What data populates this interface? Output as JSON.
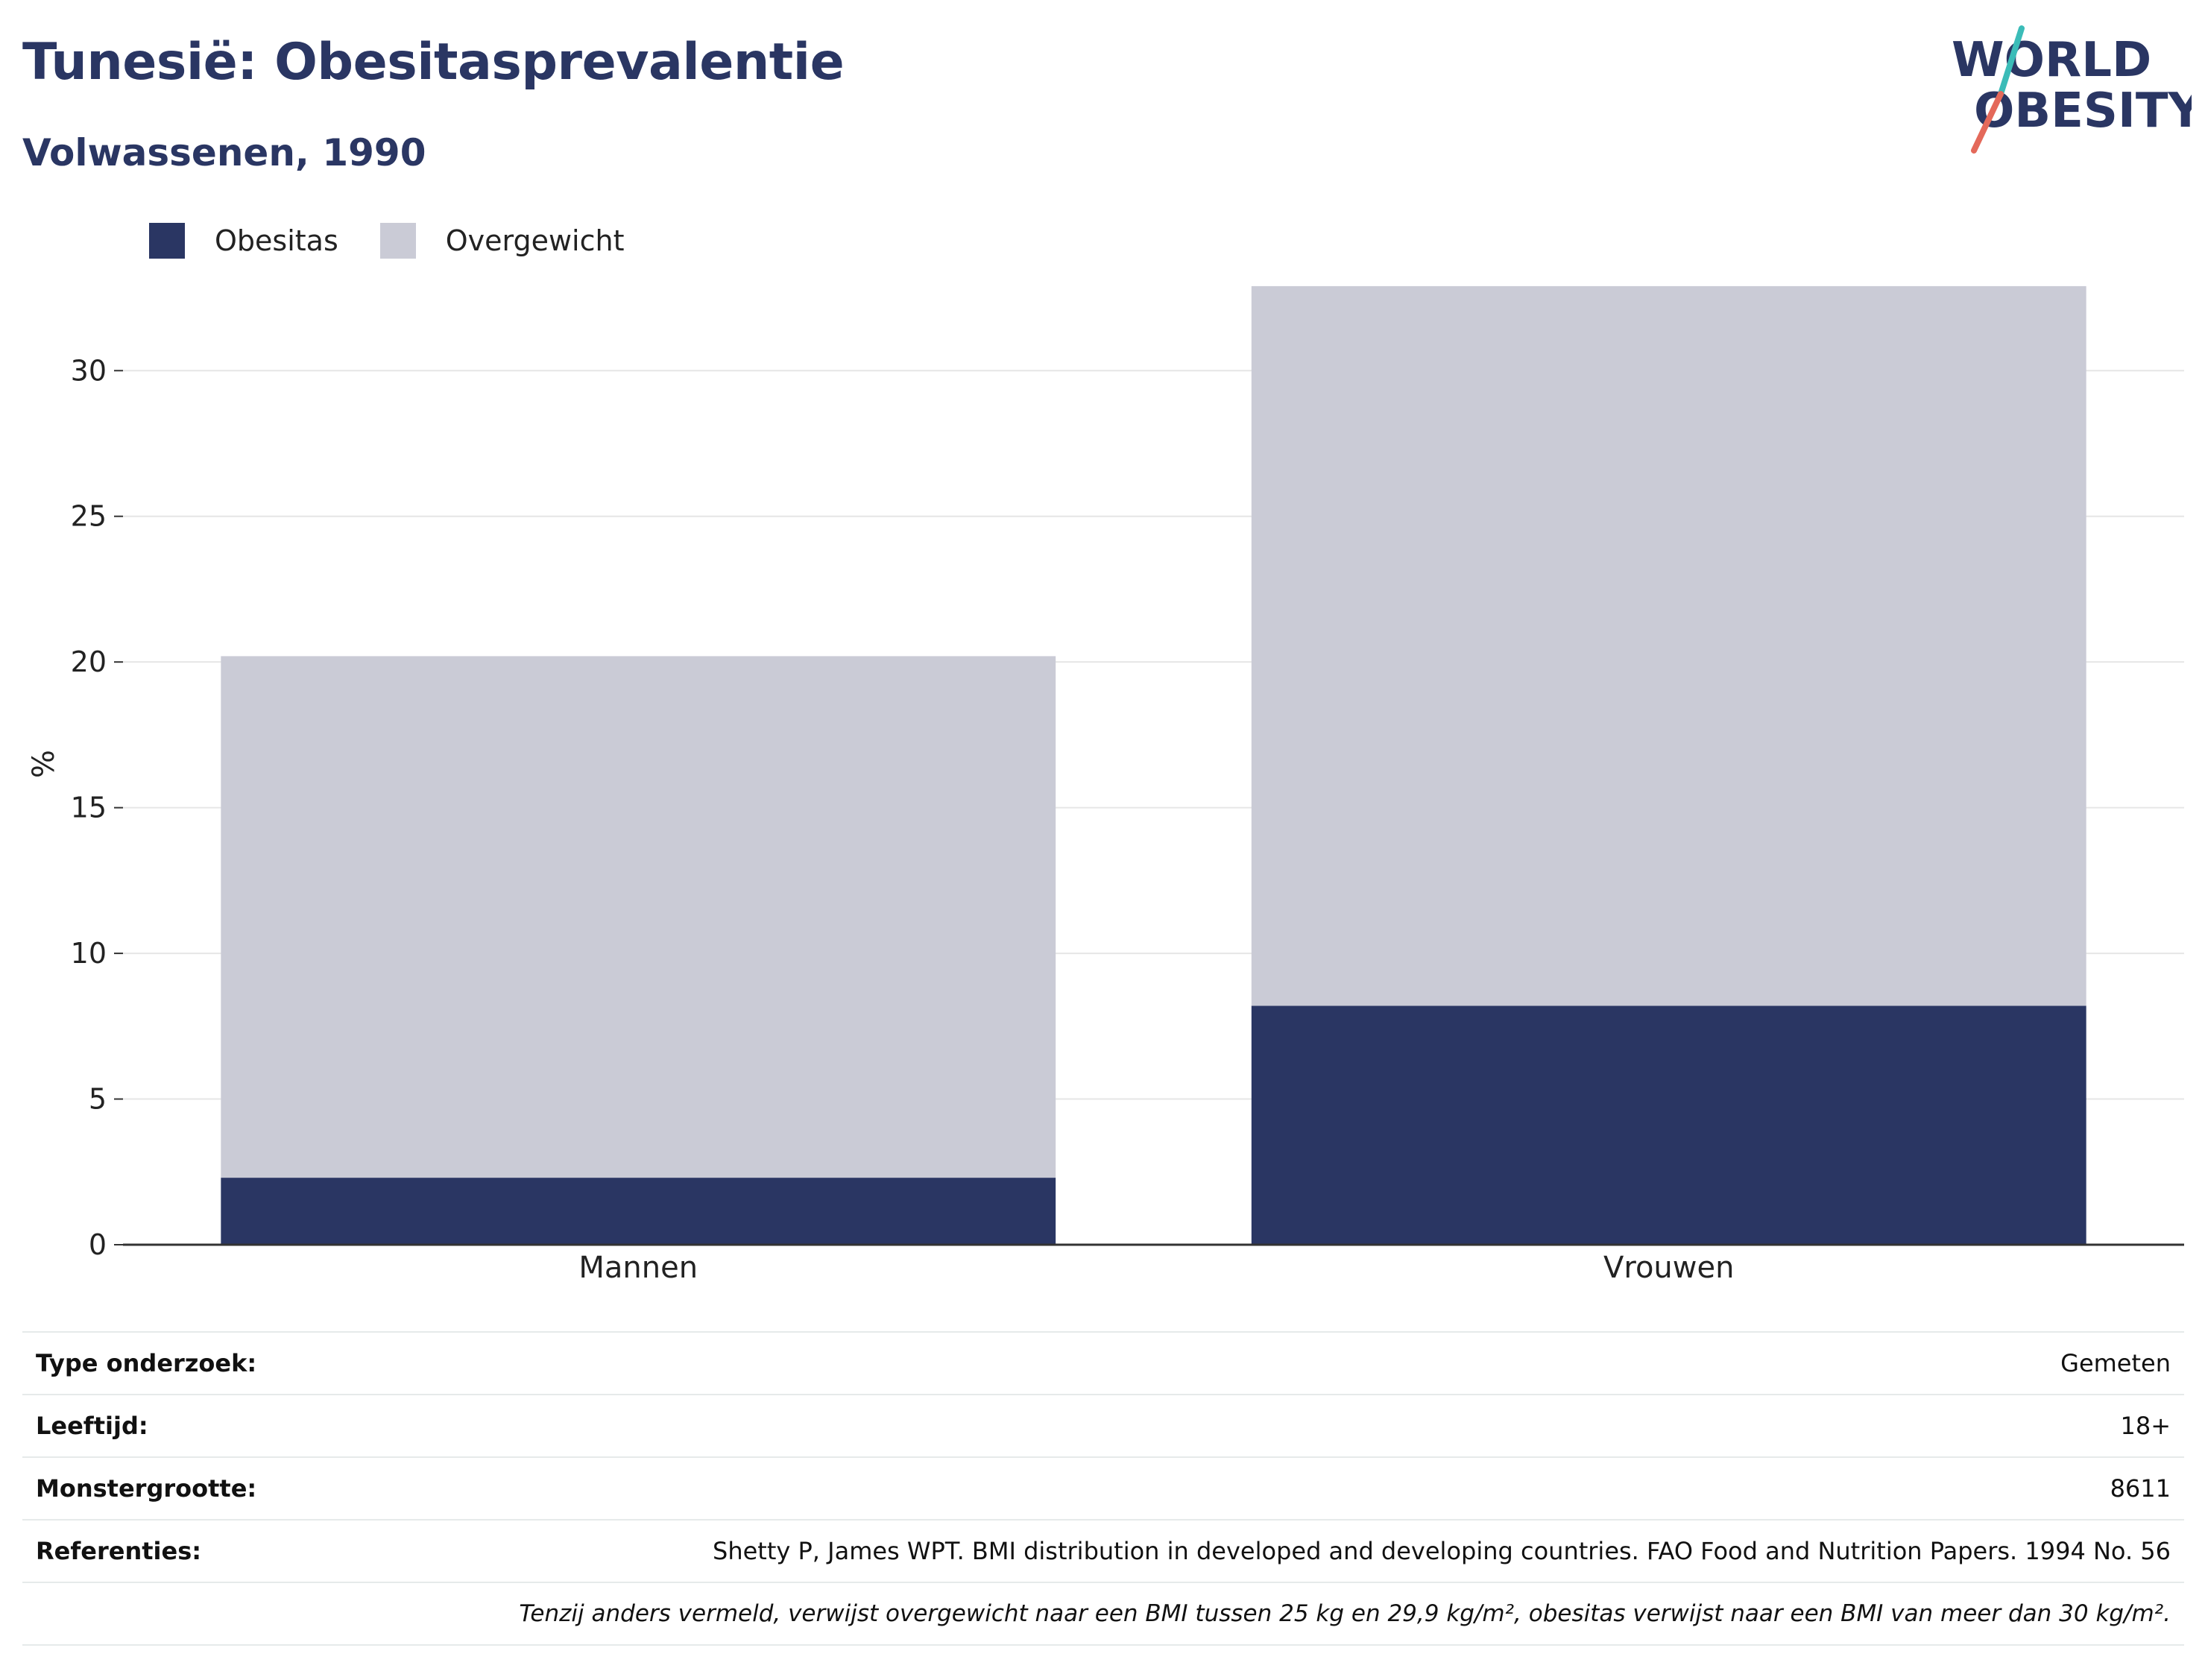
{
  "header": {
    "title": "Tunesië: Obesitasprevalentie",
    "subtitle": "Volwassenen, 1990"
  },
  "logo": {
    "line1": "WORLD",
    "line2": "OBESITY"
  },
  "colors": {
    "obesitas": "#2a3663",
    "overgewicht": "#cacbd6",
    "text": "#2a3663",
    "logo_teal": "#3bbcb8",
    "logo_red": "#e4695a"
  },
  "chart_data": {
    "type": "bar",
    "stacked": true,
    "categories": [
      "Mannen",
      "Vrouwen"
    ],
    "series": [
      {
        "name": "Obesitas",
        "values": [
          2.3,
          8.2
        ]
      },
      {
        "name": "Overgewicht",
        "values": [
          17.9,
          24.7
        ]
      }
    ],
    "ylabel": "%",
    "xlabel": "",
    "ylim": [
      0,
      33
    ],
    "yticks": [
      0,
      5,
      10,
      15,
      20,
      25,
      30
    ],
    "grid": true,
    "legend_position": "top-left"
  },
  "info": {
    "rows": [
      {
        "label": "Type onderzoek:",
        "value": "Gemeten"
      },
      {
        "label": "Leeftijd:",
        "value": "18+"
      },
      {
        "label": "Monstergrootte:",
        "value": "8611"
      },
      {
        "label": "Referenties:",
        "value": "Shetty P, James WPT. BMI distribution in developed and developing countries. FAO Food and Nutrition Papers. 1994 No. 56"
      }
    ],
    "note": "Tenzij anders vermeld, verwijst overgewicht naar een BMI tussen 25 kg en 29,9 kg/m², obesitas verwijst naar een BMI van meer dan 30 kg/m²."
  }
}
